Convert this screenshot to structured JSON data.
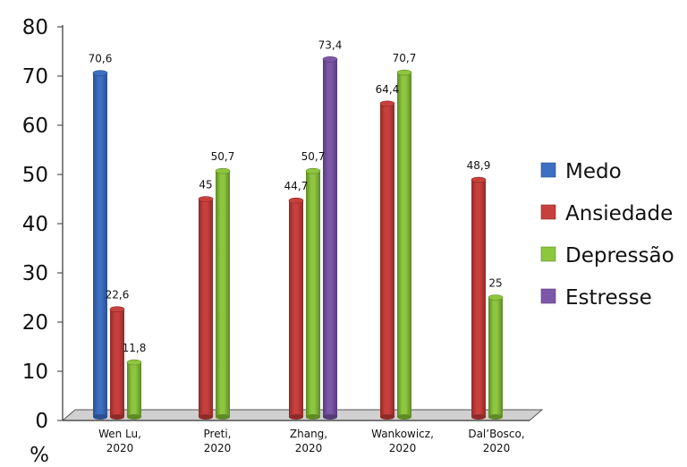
{
  "chart_data": {
    "type": "bar",
    "ylabel": "%",
    "ylim": [
      0,
      80
    ],
    "yticks": [
      "0",
      "10",
      "20",
      "30",
      "40",
      "50",
      "60",
      "70",
      "80"
    ],
    "categories": [
      [
        "Wen Lu,",
        "2020"
      ],
      [
        "Preti,",
        "2020"
      ],
      [
        "Zhang,",
        "2020"
      ],
      [
        "Wankowicz,",
        "2020"
      ],
      [
        "Dal’Bosco,",
        "2020"
      ]
    ],
    "series": [
      {
        "name": "Medo",
        "color": "#3d6fc2",
        "dark": "#2a4f8f",
        "values": [
          70.6,
          null,
          null,
          null,
          null
        ],
        "labels": [
          "70,6",
          "",
          "",
          "",
          ""
        ]
      },
      {
        "name": "Ansiedade",
        "color": "#c8403d",
        "dark": "#8e2a28",
        "values": [
          22.6,
          45,
          44.7,
          64.4,
          48.9
        ],
        "labels": [
          "22,6",
          "45",
          "44,7",
          "64,4",
          "48,9"
        ]
      },
      {
        "name": "Depressão",
        "color": "#8dc63f",
        "dark": "#5e8a25",
        "values": [
          11.8,
          50.7,
          50.7,
          70.7,
          25
        ],
        "labels": [
          "11,8",
          "50,7",
          "50,7",
          "70,7",
          "25"
        ]
      },
      {
        "name": "Estresse",
        "color": "#7d57a8",
        "dark": "#563b78",
        "values": [
          null,
          null,
          73.4,
          null,
          null
        ],
        "labels": [
          "",
          "",
          "73,4",
          "",
          ""
        ]
      }
    ],
    "legend_position": "right",
    "grid": false
  }
}
